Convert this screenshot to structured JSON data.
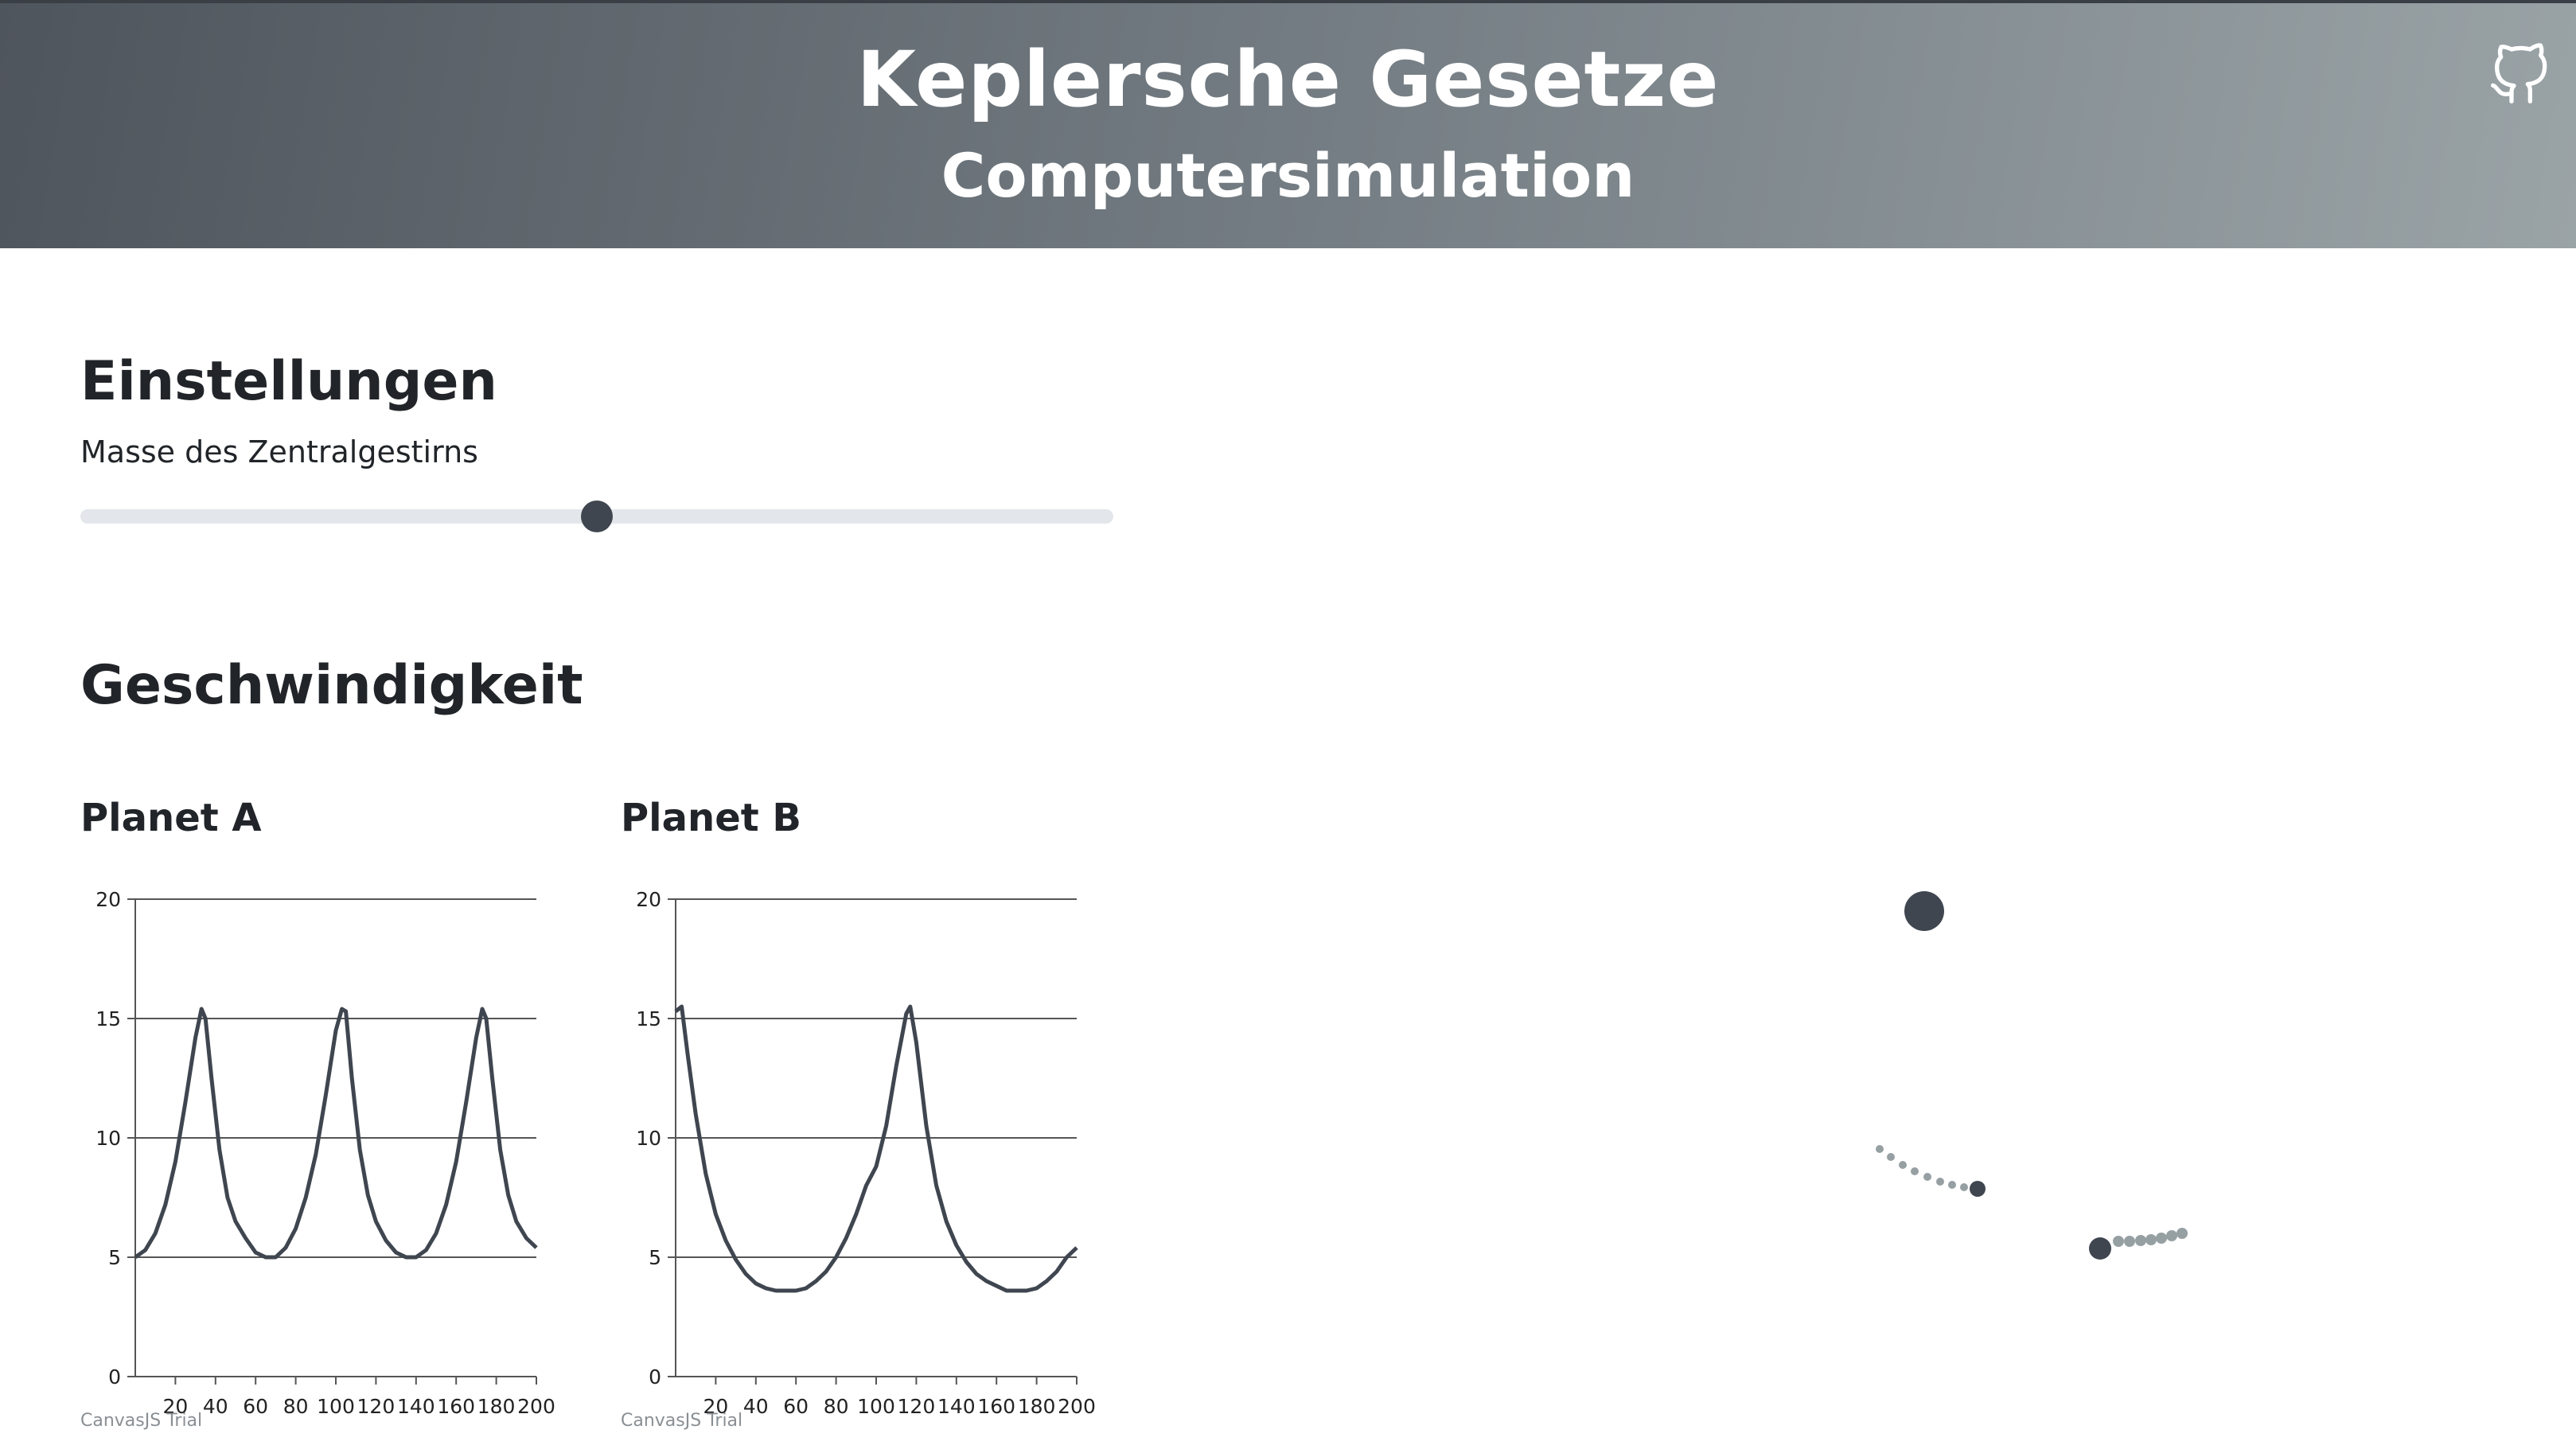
{
  "header": {
    "title": "Keplersche Gesetze",
    "subtitle": "Computersimulation",
    "github_icon": "github-icon"
  },
  "settings": {
    "heading": "Einstellungen",
    "slider_label": "Masse des Zentralgestirns",
    "slider_value": 0.5
  },
  "speed": {
    "heading": "Geschwindigkeit"
  },
  "colors": {
    "line": "#3f4650",
    "trail": "#96a0a3",
    "accent": "#3f4650"
  },
  "chart_data": [
    {
      "type": "line",
      "title": "Planet A",
      "xlim": [
        0,
        200
      ],
      "ylim": [
        0,
        20
      ],
      "xticks": [
        20,
        40,
        60,
        80,
        100,
        120,
        140,
        160,
        180,
        200
      ],
      "yticks": [
        0,
        5,
        10,
        15,
        20
      ],
      "grid": "horizontal",
      "credit": "CanvasJS Trial",
      "x": [
        0,
        5,
        10,
        15,
        20,
        25,
        30,
        33,
        35,
        38,
        42,
        46,
        50,
        55,
        60,
        65,
        70,
        75,
        80,
        85,
        90,
        95,
        100,
        103,
        105,
        108,
        112,
        116,
        120,
        125,
        130,
        135,
        140,
        145,
        150,
        155,
        160,
        165,
        170,
        173,
        175,
        178,
        182,
        186,
        190,
        195,
        200
      ],
      "y": [
        5.0,
        5.3,
        6.0,
        7.2,
        9.0,
        11.5,
        14.2,
        15.4,
        15.0,
        12.5,
        9.5,
        7.5,
        6.5,
        5.8,
        5.2,
        5.0,
        5.0,
        5.4,
        6.2,
        7.5,
        9.3,
        11.8,
        14.5,
        15.4,
        15.3,
        12.5,
        9.5,
        7.6,
        6.5,
        5.7,
        5.2,
        5.0,
        5.0,
        5.3,
        6.0,
        7.2,
        9.0,
        11.5,
        14.2,
        15.4,
        15.0,
        12.5,
        9.5,
        7.6,
        6.5,
        5.8,
        5.4
      ]
    },
    {
      "type": "line",
      "title": "Planet B",
      "xlim": [
        0,
        200
      ],
      "ylim": [
        0,
        20
      ],
      "xticks": [
        20,
        40,
        60,
        80,
        100,
        120,
        140,
        160,
        180,
        200
      ],
      "yticks": [
        0,
        5,
        10,
        15,
        20
      ],
      "grid": "horizontal",
      "credit": "CanvasJS Trial",
      "x": [
        0,
        3,
        6,
        10,
        15,
        20,
        25,
        30,
        35,
        40,
        45,
        50,
        55,
        60,
        65,
        70,
        75,
        80,
        85,
        90,
        95,
        100,
        105,
        110,
        115,
        117,
        120,
        125,
        130,
        135,
        140,
        145,
        150,
        155,
        160,
        165,
        170,
        175,
        180,
        185,
        190,
        195,
        200
      ],
      "y": [
        15.3,
        15.5,
        13.5,
        11.0,
        8.5,
        6.8,
        5.7,
        4.9,
        4.3,
        3.9,
        3.7,
        3.6,
        3.6,
        3.6,
        3.7,
        4.0,
        4.4,
        5.0,
        5.8,
        6.8,
        8.0,
        8.8,
        10.5,
        13.0,
        15.2,
        15.5,
        14.0,
        10.5,
        8.0,
        6.5,
        5.5,
        4.8,
        4.3,
        4.0,
        3.8,
        3.6,
        3.6,
        3.6,
        3.7,
        4.0,
        4.4,
        5.0,
        5.4
      ]
    }
  ],
  "simulation": {
    "sun_icon": "central-star",
    "planet_a_icon": "planet-a",
    "planet_b_icon": "planet-b"
  }
}
